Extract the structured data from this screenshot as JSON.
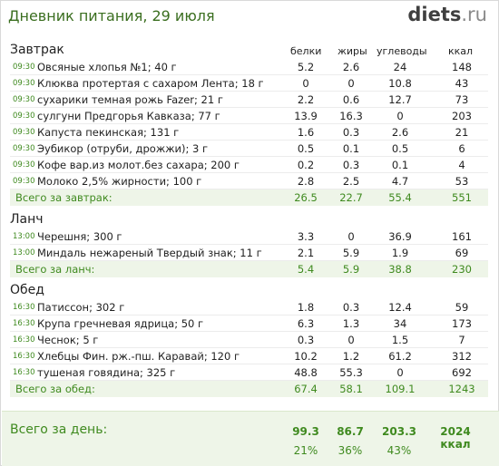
{
  "header": {
    "title": "Дневник питания, 29 июля",
    "logo_main": "diets",
    "logo_tld": ".ru"
  },
  "columns": [
    "белки",
    "жиры",
    "углеводы",
    "ккал"
  ],
  "sections": [
    {
      "title": "Завтрак",
      "items": [
        {
          "time": "09:30",
          "name": "Овсяные хлопья №1; 40 г",
          "p": "5.2",
          "f": "2.6",
          "c": "24",
          "kcal": "148"
        },
        {
          "time": "09:30",
          "name": "Клюква протертая с сахаром Лента; 18 г",
          "p": "0",
          "f": "0",
          "c": "10.8",
          "kcal": "43"
        },
        {
          "time": "09:30",
          "name": "сухарики темная рожь Fazer; 21 г",
          "p": "2.2",
          "f": "0.6",
          "c": "12.7",
          "kcal": "73"
        },
        {
          "time": "09:30",
          "name": "сулгуни Предгорья Кавказа; 77 г",
          "p": "13.9",
          "f": "16.3",
          "c": "0",
          "kcal": "203"
        },
        {
          "time": "09:30",
          "name": "Капуста пекинская; 131 г",
          "p": "1.6",
          "f": "0.3",
          "c": "2.6",
          "kcal": "21"
        },
        {
          "time": "09:30",
          "name": "Эубикор (отруби, дрожжи); 3 г",
          "p": "0.5",
          "f": "0.1",
          "c": "0.5",
          "kcal": "6"
        },
        {
          "time": "09:30",
          "name": "Кофе вар.из молот.без сахара; 200 г",
          "p": "0.2",
          "f": "0.3",
          "c": "0.1",
          "kcal": "4"
        },
        {
          "time": "09:30",
          "name": "Молоко 2,5% жирности; 100 г",
          "p": "2.8",
          "f": "2.5",
          "c": "4.7",
          "kcal": "53"
        }
      ],
      "total": {
        "label": "Всего за завтрак:",
        "p": "26.5",
        "f": "22.7",
        "c": "55.4",
        "kcal": "551"
      }
    },
    {
      "title": "Ланч",
      "items": [
        {
          "time": "13:00",
          "name": "Черешня; 300 г",
          "p": "3.3",
          "f": "0",
          "c": "36.9",
          "kcal": "161"
        },
        {
          "time": "13:00",
          "name": "Миндаль нежареный Твердый знак; 11 г",
          "p": "2.1",
          "f": "5.9",
          "c": "1.9",
          "kcal": "69"
        }
      ],
      "total": {
        "label": "Всего за ланч:",
        "p": "5.4",
        "f": "5.9",
        "c": "38.8",
        "kcal": "230"
      }
    },
    {
      "title": "Обед",
      "items": [
        {
          "time": "16:30",
          "name": "Патиссон; 302 г",
          "p": "1.8",
          "f": "0.3",
          "c": "12.4",
          "kcal": "59"
        },
        {
          "time": "16:30",
          "name": "Крупа гречневая ядрица; 50 г",
          "p": "6.3",
          "f": "1.3",
          "c": "34",
          "kcal": "173"
        },
        {
          "time": "16:30",
          "name": "Чеснок; 5 г",
          "p": "0.3",
          "f": "0",
          "c": "1.5",
          "kcal": "7"
        },
        {
          "time": "16:30",
          "name": "Хлебцы Фин. рж.-пш. Каравай; 120 г",
          "p": "10.2",
          "f": "1.2",
          "c": "61.2",
          "kcal": "312"
        },
        {
          "time": "16:30",
          "name": "тушеная говядина; 325 г",
          "p": "48.8",
          "f": "55.3",
          "c": "0",
          "kcal": "692"
        }
      ],
      "total": {
        "label": "Всего за обед:",
        "p": "67.4",
        "f": "58.1",
        "c": "109.1",
        "kcal": "1243"
      }
    }
  ],
  "day": {
    "label": "Всего за день:",
    "p": "99.3",
    "f": "86.7",
    "c": "203.3",
    "kcal": "2024 ккал",
    "p_pct": "21%",
    "f_pct": "36%",
    "c_pct": "43%"
  }
}
